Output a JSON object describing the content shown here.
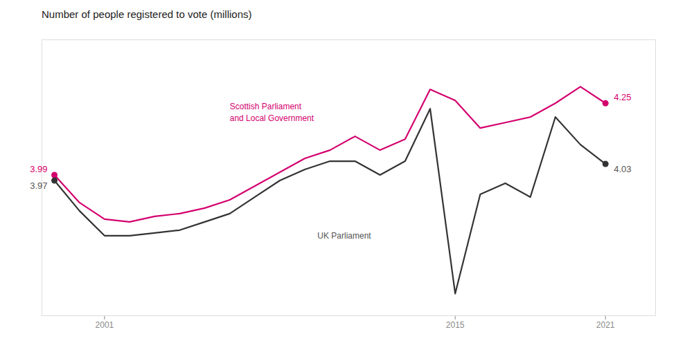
{
  "chart_data": {
    "type": "line",
    "title": "Number of people registered to vote (millions)",
    "x": [
      1999,
      2000,
      2001,
      2002,
      2003,
      2004,
      2005,
      2006,
      2007,
      2008,
      2009,
      2010,
      2011,
      2012,
      2013,
      2014,
      2015,
      2016,
      2017,
      2018,
      2019,
      2020,
      2021
    ],
    "series": [
      {
        "name": "Scottish Parliament\nand Local Government",
        "color": "#d4006e",
        "values": [
          3.99,
          3.89,
          3.83,
          3.82,
          3.84,
          3.85,
          3.87,
          3.9,
          3.95,
          4.0,
          4.05,
          4.08,
          4.13,
          4.08,
          4.12,
          4.3,
          4.26,
          4.16,
          4.18,
          4.2,
          4.25,
          4.31,
          4.25
        ]
      },
      {
        "name": "UK Parliament",
        "color": "#333333",
        "values": [
          3.97,
          3.86,
          3.77,
          3.77,
          3.78,
          3.79,
          3.82,
          3.85,
          3.91,
          3.97,
          4.01,
          4.04,
          4.04,
          3.99,
          4.04,
          4.23,
          3.56,
          3.92,
          3.96,
          3.91,
          4.2,
          4.1,
          4.03
        ]
      }
    ],
    "annotations": [
      {
        "text": "3.99",
        "x": 1999,
        "y": 3.99,
        "color": "#d4006e"
      },
      {
        "text": "3.97",
        "x": 1999,
        "y": 3.97,
        "color": "#555555"
      },
      {
        "text": "4.25",
        "x": 2021,
        "y": 4.25,
        "color": "#d4006e"
      },
      {
        "text": "4.03",
        "x": 2021,
        "y": 4.03,
        "color": "#555555"
      },
      {
        "text": "Scottish Parliament\nand Local Government",
        "x": 2006.0,
        "y": 4.22,
        "color": "#d4006e"
      },
      {
        "text": "UK Parliament",
        "x": 2009.5,
        "y": 3.77,
        "color": "#555555"
      }
    ],
    "xlim": [
      1998.5,
      2023.0
    ],
    "xticks": [
      2001,
      2015,
      2021
    ],
    "ylim": [
      3.48,
      4.48
    ],
    "yticks": [],
    "tick_labels": "x",
    "grid": false
  }
}
